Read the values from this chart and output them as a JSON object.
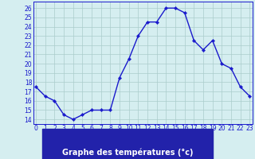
{
  "hours": [
    0,
    1,
    2,
    3,
    4,
    5,
    6,
    7,
    8,
    9,
    10,
    11,
    12,
    13,
    14,
    15,
    16,
    17,
    18,
    19,
    20,
    21,
    22,
    23
  ],
  "temperatures": [
    17.5,
    16.5,
    16.0,
    14.5,
    14.0,
    14.5,
    15.0,
    15.0,
    15.0,
    18.5,
    20.5,
    23.0,
    24.5,
    24.5,
    26.0,
    26.0,
    25.5,
    22.5,
    21.5,
    22.5,
    20.0,
    19.5,
    17.5,
    16.5
  ],
  "line_color": "#1a1acc",
  "marker": "D",
  "marker_size": 2.2,
  "bg_color": "#d5eef0",
  "grid_color": "#aacccc",
  "xlabel": "Graphe des températures (°c)",
  "xlabel_bg": "#2222aa",
  "xlabel_color": "#ffffff",
  "ylim": [
    13.5,
    26.7
  ],
  "xlim": [
    -0.3,
    23.3
  ],
  "yticks": [
    14,
    15,
    16,
    17,
    18,
    19,
    20,
    21,
    22,
    23,
    24,
    25,
    26
  ],
  "xticks": [
    0,
    1,
    2,
    3,
    4,
    5,
    6,
    7,
    8,
    9,
    10,
    11,
    12,
    13,
    14,
    15,
    16,
    17,
    18,
    19,
    20,
    21,
    22,
    23
  ],
  "tick_color": "#1a1acc",
  "tick_fontsize": 5.5,
  "label_fontsize": 7.0,
  "linewidth": 1.0
}
